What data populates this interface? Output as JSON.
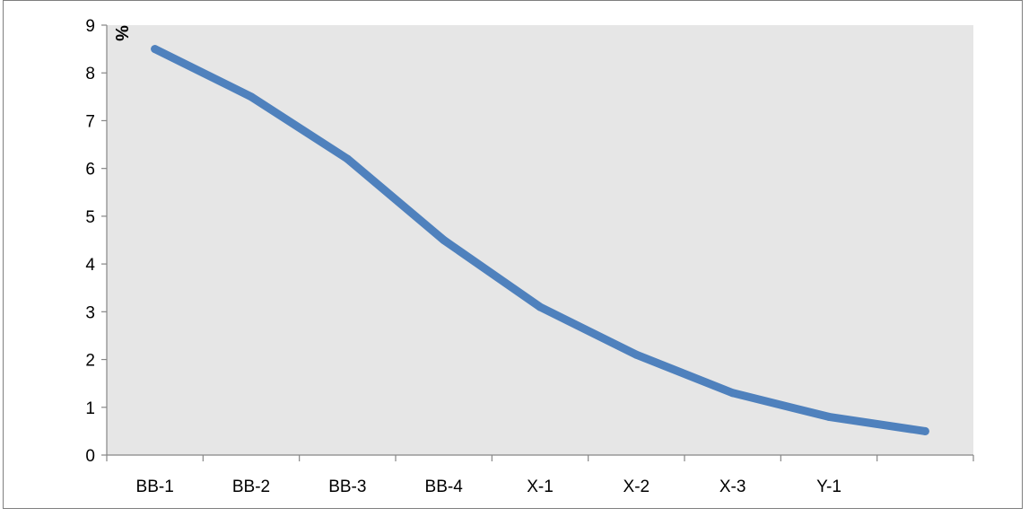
{
  "chart_data": {
    "type": "line",
    "title": "",
    "xlabel": "",
    "ylabel": "%",
    "categories": [
      "BB-1",
      "BB-2",
      "BB-3",
      "BB-4",
      "X-1",
      "X-2",
      "X-3",
      "Y-1",
      ""
    ],
    "series": [
      {
        "values": [
          8.5,
          7.5,
          6.2,
          4.5,
          3.1,
          2.1,
          1.3,
          0.8,
          0.5
        ],
        "color": "#4f81bd"
      }
    ],
    "ylim": [
      0,
      9
    ],
    "yticks": [
      "0",
      "1",
      "2",
      "3",
      "4",
      "5",
      "6",
      "7",
      "8",
      "9"
    ],
    "plot_background": "#e6e6e6",
    "grid": false,
    "legend": "none"
  }
}
